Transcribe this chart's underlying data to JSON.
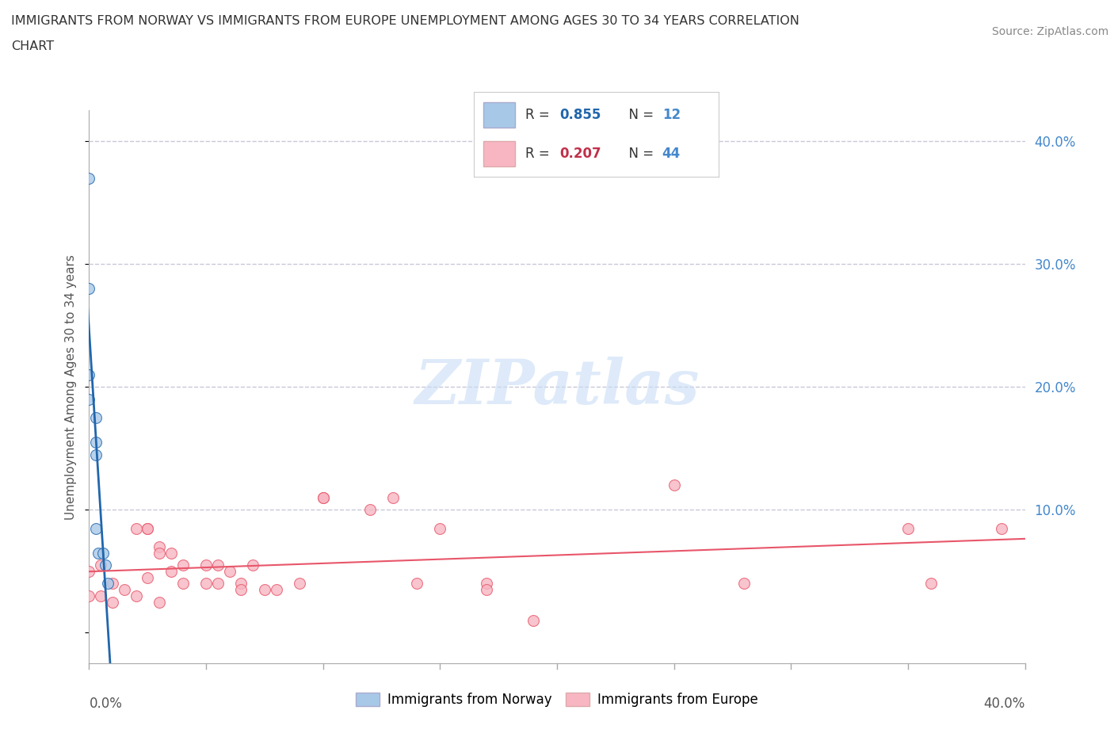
{
  "title_line1": "IMMIGRANTS FROM NORWAY VS IMMIGRANTS FROM EUROPE UNEMPLOYMENT AMONG AGES 30 TO 34 YEARS CORRELATION",
  "title_line2": "CHART",
  "source": "Source: ZipAtlas.com",
  "ylabel": "Unemployment Among Ages 30 to 34 years",
  "xlim": [
    0.0,
    0.4
  ],
  "ylim": [
    -0.025,
    0.425
  ],
  "yticks": [
    0.0,
    0.1,
    0.2,
    0.3,
    0.4
  ],
  "norway_R": 0.855,
  "norway_N": 12,
  "europe_R": 0.207,
  "europe_N": 44,
  "norway_scatter_color": "#a8c8e8",
  "norway_line_color": "#2166ac",
  "europe_scatter_color": "#f7b6c2",
  "europe_line_color": "#e8566a",
  "norway_x": [
    0.0,
    0.0,
    0.0,
    0.0,
    0.003,
    0.003,
    0.003,
    0.003,
    0.004,
    0.006,
    0.007,
    0.008
  ],
  "norway_y": [
    0.37,
    0.28,
    0.21,
    0.19,
    0.175,
    0.155,
    0.145,
    0.085,
    0.065,
    0.065,
    0.055,
    0.04
  ],
  "europe_x": [
    0.0,
    0.0,
    0.005,
    0.005,
    0.01,
    0.01,
    0.015,
    0.02,
    0.02,
    0.025,
    0.025,
    0.025,
    0.03,
    0.03,
    0.03,
    0.035,
    0.035,
    0.04,
    0.04,
    0.05,
    0.05,
    0.055,
    0.055,
    0.06,
    0.065,
    0.065,
    0.07,
    0.075,
    0.08,
    0.09,
    0.1,
    0.1,
    0.12,
    0.13,
    0.14,
    0.15,
    0.17,
    0.17,
    0.19,
    0.25,
    0.28,
    0.35,
    0.36,
    0.39
  ],
  "europe_y": [
    0.05,
    0.03,
    0.055,
    0.03,
    0.04,
    0.025,
    0.035,
    0.085,
    0.03,
    0.085,
    0.085,
    0.045,
    0.07,
    0.065,
    0.025,
    0.065,
    0.05,
    0.055,
    0.04,
    0.055,
    0.04,
    0.055,
    0.04,
    0.05,
    0.04,
    0.035,
    0.055,
    0.035,
    0.035,
    0.04,
    0.11,
    0.11,
    0.1,
    0.11,
    0.04,
    0.085,
    0.04,
    0.035,
    0.01,
    0.12,
    0.04,
    0.085,
    0.04,
    0.085
  ],
  "watermark_text": "ZIPatlas",
  "watermark_color": "#c8ddf5",
  "background_color": "#ffffff",
  "grid_color": "#c8c8d8",
  "right_tick_color": "#4488cc",
  "legend_norway_box": "#a8c8e8",
  "legend_europe_box": "#f7b6c2",
  "legend_border_color": "#cccccc",
  "legend_R_color_norway": "#2166ac",
  "legend_R_color_europe": "#c0304a",
  "legend_N_color": "#4488cc",
  "legend_text_color": "#333333"
}
